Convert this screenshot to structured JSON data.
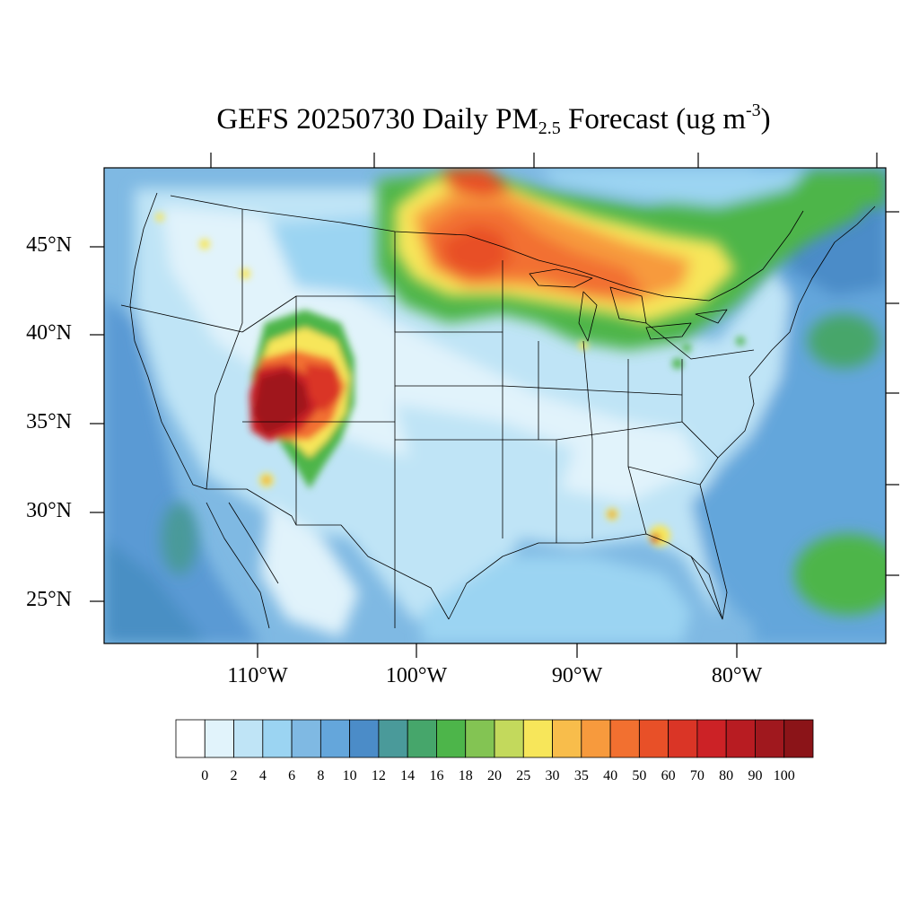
{
  "title": {
    "main": "GEFS 20250730 Daily PM",
    "sub": "2.5",
    "mid": " Forecast (ug m",
    "sup": "-3",
    "end": ")"
  },
  "map": {
    "lon_range": [
      -119.5,
      -71.0
    ],
    "lat_range": [
      22.5,
      49.5
    ],
    "lat_ticks": [
      "45°N",
      "40°N",
      "35°N",
      "30°N",
      "25°N"
    ],
    "lon_ticks": [
      "110°W",
      "100°W",
      "90°W",
      "80°W"
    ]
  },
  "colorbar": {
    "labels": [
      "0",
      "2",
      "4",
      "6",
      "8",
      "10",
      "12",
      "14",
      "16",
      "18",
      "20",
      "25",
      "30",
      "35",
      "40",
      "50",
      "60",
      "70",
      "80",
      "90",
      "100"
    ],
    "colors": [
      "#ffffff",
      "#e1f3fb",
      "#bfe4f6",
      "#9bd4f2",
      "#7fb9e3",
      "#64a6db",
      "#4b8cc8",
      "#4a9a9a",
      "#46a66b",
      "#4db54a",
      "#83c453",
      "#c3d95c",
      "#f7e65a",
      "#f8bd4b",
      "#f79a3d",
      "#f27030",
      "#e85028",
      "#da3526",
      "#cc2226",
      "#b81c22",
      "#a0181e",
      "#8b1418"
    ]
  },
  "chart_data": {
    "type": "heatmap",
    "title": "GEFS 20250730 Daily PM2.5 Forecast (ug m-3)",
    "variable": "Daily PM2.5",
    "units": "ug m-3",
    "date": "20250730",
    "model": "GEFS",
    "lat_ticks": [
      45,
      40,
      35,
      30,
      25
    ],
    "lon_ticks": [
      -110,
      -100,
      -90,
      -80
    ],
    "levels": [
      0,
      2,
      4,
      6,
      8,
      10,
      12,
      14,
      16,
      18,
      20,
      25,
      30,
      35,
      40,
      50,
      60,
      70,
      80,
      90,
      100
    ]
  }
}
